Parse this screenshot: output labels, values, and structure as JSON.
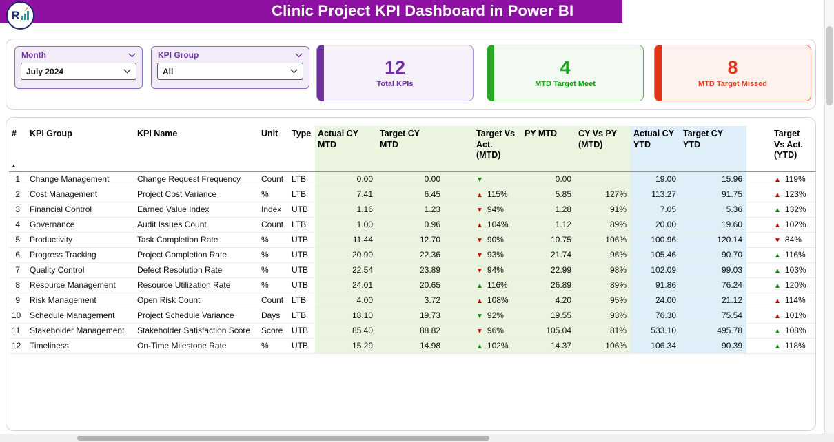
{
  "header": {
    "title": "Clinic Project KPI Dashboard in Power BI",
    "logo_letter": "R"
  },
  "filters": {
    "month": {
      "label": "Month",
      "value": "July 2024"
    },
    "kpi_group": {
      "label": "KPI Group",
      "value": "All"
    }
  },
  "cards": [
    {
      "value": "12",
      "label": "Total KPIs",
      "color": "#7030A0"
    },
    {
      "value": "4",
      "label": "MTD Target Meet",
      "color": "#17A317"
    },
    {
      "value": "8",
      "label": "MTD Target Missed",
      "color": "#E5391D"
    }
  ],
  "colors": {
    "titlebar": "#8E11A4",
    "arrow_good": "#128412",
    "arrow_bad": "#C00000",
    "mtd_column_tint": "#EAF4DF",
    "ytd_column_tint": "#DFEFF9"
  },
  "table": {
    "columns": [
      "#",
      "KPI Group",
      "KPI Name",
      "Unit",
      "Type",
      "Actual CY MTD",
      "Target CY MTD",
      "Target Vs Act. (MTD)",
      "PY MTD",
      "CY Vs PY (MTD)",
      "Actual CY YTD",
      "Target CY YTD",
      "Target Vs Act. (YTD)"
    ],
    "rows": [
      {
        "num": "1",
        "group": "Change Management",
        "name": "Change Request Frequency",
        "unit": "Count",
        "type": "LTB",
        "actual_mtd": "0.00",
        "target_mtd": "0.00",
        "tva_mtd": {
          "dir": "down",
          "state": "good",
          "text": ""
        },
        "py_mtd": "0.00",
        "cy_vs_py": "",
        "actual_ytd": "19.00",
        "target_ytd": "15.96",
        "tva_ytd": {
          "dir": "up",
          "state": "bad",
          "text": "119%"
        }
      },
      {
        "num": "2",
        "group": "Cost Management",
        "name": "Project Cost Variance",
        "unit": "%",
        "type": "LTB",
        "actual_mtd": "7.41",
        "target_mtd": "6.45",
        "tva_mtd": {
          "dir": "up",
          "state": "bad",
          "text": "115%"
        },
        "py_mtd": "5.85",
        "cy_vs_py": "127%",
        "actual_ytd": "113.27",
        "target_ytd": "91.75",
        "tva_ytd": {
          "dir": "up",
          "state": "bad",
          "text": "123%"
        }
      },
      {
        "num": "3",
        "group": "Financial Control",
        "name": "Earned Value Index",
        "unit": "Index",
        "type": "UTB",
        "actual_mtd": "1.16",
        "target_mtd": "1.23",
        "tva_mtd": {
          "dir": "down",
          "state": "bad",
          "text": "94%"
        },
        "py_mtd": "1.28",
        "cy_vs_py": "91%",
        "actual_ytd": "7.05",
        "target_ytd": "5.36",
        "tva_ytd": {
          "dir": "up",
          "state": "good",
          "text": "132%"
        }
      },
      {
        "num": "4",
        "group": "Governance",
        "name": "Audit Issues Count",
        "unit": "Count",
        "type": "LTB",
        "actual_mtd": "1.00",
        "target_mtd": "0.96",
        "tva_mtd": {
          "dir": "up",
          "state": "bad",
          "text": "104%"
        },
        "py_mtd": "1.12",
        "cy_vs_py": "89%",
        "actual_ytd": "20.00",
        "target_ytd": "19.60",
        "tva_ytd": {
          "dir": "up",
          "state": "bad",
          "text": "102%"
        }
      },
      {
        "num": "5",
        "group": "Productivity",
        "name": "Task Completion Rate",
        "unit": "%",
        "type": "UTB",
        "actual_mtd": "11.44",
        "target_mtd": "12.70",
        "tva_mtd": {
          "dir": "down",
          "state": "bad",
          "text": "90%"
        },
        "py_mtd": "10.75",
        "cy_vs_py": "106%",
        "actual_ytd": "100.96",
        "target_ytd": "120.14",
        "tva_ytd": {
          "dir": "down",
          "state": "bad",
          "text": "84%"
        }
      },
      {
        "num": "6",
        "group": "Progress Tracking",
        "name": "Project Completion Rate",
        "unit": "%",
        "type": "UTB",
        "actual_mtd": "20.90",
        "target_mtd": "22.36",
        "tva_mtd": {
          "dir": "down",
          "state": "bad",
          "text": "93%"
        },
        "py_mtd": "21.74",
        "cy_vs_py": "96%",
        "actual_ytd": "105.46",
        "target_ytd": "90.70",
        "tva_ytd": {
          "dir": "up",
          "state": "good",
          "text": "116%"
        }
      },
      {
        "num": "7",
        "group": "Quality Control",
        "name": "Defect Resolution Rate",
        "unit": "%",
        "type": "UTB",
        "actual_mtd": "22.54",
        "target_mtd": "23.89",
        "tva_mtd": {
          "dir": "down",
          "state": "bad",
          "text": "94%"
        },
        "py_mtd": "22.99",
        "cy_vs_py": "98%",
        "actual_ytd": "102.09",
        "target_ytd": "99.03",
        "tva_ytd": {
          "dir": "up",
          "state": "good",
          "text": "103%"
        }
      },
      {
        "num": "8",
        "group": "Resource Management",
        "name": "Resource Utilization Rate",
        "unit": "%",
        "type": "UTB",
        "actual_mtd": "24.01",
        "target_mtd": "20.65",
        "tva_mtd": {
          "dir": "up",
          "state": "good",
          "text": "116%"
        },
        "py_mtd": "26.89",
        "cy_vs_py": "89%",
        "actual_ytd": "91.86",
        "target_ytd": "76.24",
        "tva_ytd": {
          "dir": "up",
          "state": "good",
          "text": "120%"
        }
      },
      {
        "num": "9",
        "group": "Risk Management",
        "name": "Open Risk Count",
        "unit": "Count",
        "type": "LTB",
        "actual_mtd": "4.00",
        "target_mtd": "3.72",
        "tva_mtd": {
          "dir": "up",
          "state": "bad",
          "text": "108%"
        },
        "py_mtd": "4.20",
        "cy_vs_py": "95%",
        "actual_ytd": "24.00",
        "target_ytd": "21.12",
        "tva_ytd": {
          "dir": "up",
          "state": "bad",
          "text": "114%"
        }
      },
      {
        "num": "10",
        "group": "Schedule Management",
        "name": "Project Schedule Variance",
        "unit": "Days",
        "type": "LTB",
        "actual_mtd": "18.10",
        "target_mtd": "19.73",
        "tva_mtd": {
          "dir": "down",
          "state": "good",
          "text": "92%"
        },
        "py_mtd": "19.55",
        "cy_vs_py": "93%",
        "actual_ytd": "76.30",
        "target_ytd": "75.54",
        "tva_ytd": {
          "dir": "up",
          "state": "bad",
          "text": "101%"
        }
      },
      {
        "num": "11",
        "group": "Stakeholder Management",
        "name": "Stakeholder Satisfaction Score",
        "unit": "Score",
        "type": "UTB",
        "actual_mtd": "85.40",
        "target_mtd": "88.82",
        "tva_mtd": {
          "dir": "down",
          "state": "bad",
          "text": "96%"
        },
        "py_mtd": "105.04",
        "cy_vs_py": "81%",
        "actual_ytd": "533.10",
        "target_ytd": "495.78",
        "tva_ytd": {
          "dir": "up",
          "state": "good",
          "text": "108%"
        }
      },
      {
        "num": "12",
        "group": "Timeliness",
        "name": "On-Time Milestone Rate",
        "unit": "%",
        "type": "UTB",
        "actual_mtd": "15.29",
        "target_mtd": "14.98",
        "tva_mtd": {
          "dir": "up",
          "state": "good",
          "text": "102%"
        },
        "py_mtd": "14.37",
        "cy_vs_py": "106%",
        "actual_ytd": "106.34",
        "target_ytd": "90.39",
        "tva_ytd": {
          "dir": "up",
          "state": "good",
          "text": "118%"
        }
      }
    ]
  }
}
